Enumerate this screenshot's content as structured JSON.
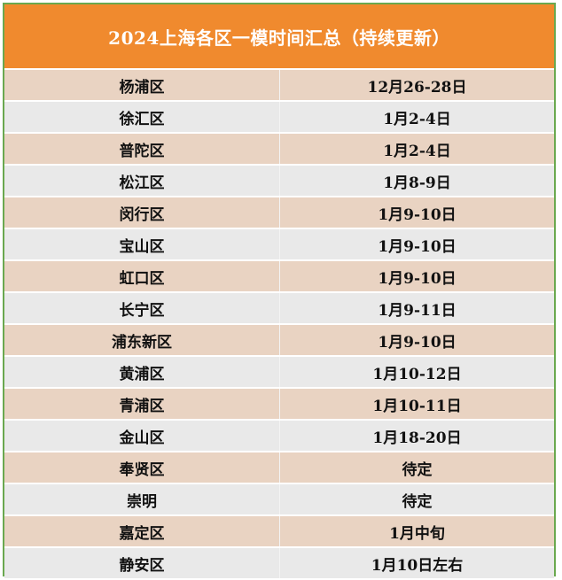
{
  "title": "2024上海各区一模时间汇总（持续更新）",
  "colors": {
    "header": "#f08a2e",
    "odd_row": "#e9d3c2",
    "even_row": "#e9e9e9",
    "border": "#6aa84f"
  },
  "rows": [
    {
      "district": "杨浦区",
      "date": "12月26-28日"
    },
    {
      "district": "徐汇区",
      "date": "1月2-4日"
    },
    {
      "district": "普陀区",
      "date": "1月2-4日"
    },
    {
      "district": "松江区",
      "date": "1月8-9日"
    },
    {
      "district": "闵行区",
      "date": "1月9-10日"
    },
    {
      "district": "宝山区",
      "date": "1月9-10日"
    },
    {
      "district": "虹口区",
      "date": "1月9-10日"
    },
    {
      "district": "长宁区",
      "date": "1月9-11日"
    },
    {
      "district": "浦东新区",
      "date": "1月9-10日"
    },
    {
      "district": "黄浦区",
      "date": "1月10-12日"
    },
    {
      "district": "青浦区",
      "date": "1月10-11日"
    },
    {
      "district": "金山区",
      "date": "1月18-20日"
    },
    {
      "district": "奉贤区",
      "date": "待定"
    },
    {
      "district": "崇明",
      "date": "待定"
    },
    {
      "district": "嘉定区",
      "date": "1月中旬"
    },
    {
      "district": "静安区",
      "date": "1月10日左右"
    }
  ]
}
